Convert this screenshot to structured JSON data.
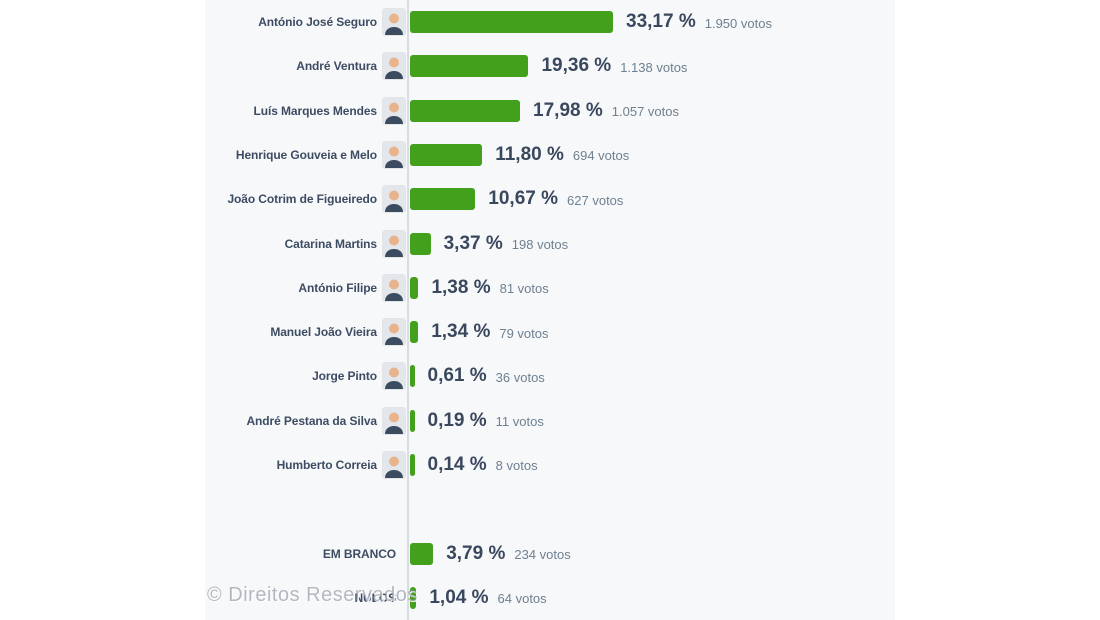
{
  "watermark": "© Direitos Reservados",
  "colors": {
    "bar_green": "#43a01c",
    "panel_background": "#f7f8fa",
    "axis_line": "#d9dde2",
    "name_text": "#3d4c63",
    "percent_text": "#3a485e",
    "votes_text": "#6f8090"
  },
  "chart_data": {
    "type": "bar",
    "orientation": "horizontal",
    "unit": "%",
    "title": "",
    "xlabel": "",
    "ylabel": "",
    "legend": false,
    "grid": false,
    "categories": [
      "António José Seguro",
      "André Ventura",
      "Luís Marques Mendes",
      "Henrique Gouveia e Melo",
      "João Cotrim de Figueiredo",
      "Catarina Martins",
      "António Filipe",
      "Manuel João Vieira",
      "Jorge Pinto",
      "André Pestana da Silva",
      "Humberto Correia",
      "EM BRANCO",
      "NULOS"
    ],
    "values": [
      33.17,
      19.36,
      17.98,
      11.8,
      10.67,
      3.37,
      1.38,
      1.34,
      0.61,
      0.19,
      0.14,
      3.79,
      1.04
    ],
    "votes": [
      1950,
      1138,
      1057,
      694,
      627,
      198,
      81,
      79,
      36,
      11,
      8,
      234,
      64
    ],
    "rows": [
      {
        "name": "António José Seguro",
        "value": 33.17,
        "percent_label": "33,17 %",
        "votes_label": "1.950 votos",
        "has_avatar": true,
        "spacer_before": false
      },
      {
        "name": "André Ventura",
        "value": 19.36,
        "percent_label": "19,36 %",
        "votes_label": "1.138 votos",
        "has_avatar": true,
        "spacer_before": false
      },
      {
        "name": "Luís Marques Mendes",
        "value": 17.98,
        "percent_label": "17,98 %",
        "votes_label": "1.057 votos",
        "has_avatar": true,
        "spacer_before": false
      },
      {
        "name": "Henrique Gouveia e Melo",
        "value": 11.8,
        "percent_label": "11,80 %",
        "votes_label": "694 votos",
        "has_avatar": true,
        "spacer_before": false
      },
      {
        "name": "João Cotrim de Figueiredo",
        "value": 10.67,
        "percent_label": "10,67 %",
        "votes_label": "627 votos",
        "has_avatar": true,
        "spacer_before": false
      },
      {
        "name": "Catarina Martins",
        "value": 3.37,
        "percent_label": "3,37 %",
        "votes_label": "198 votos",
        "has_avatar": true,
        "spacer_before": false
      },
      {
        "name": "António Filipe",
        "value": 1.38,
        "percent_label": "1,38 %",
        "votes_label": "81 votos",
        "has_avatar": true,
        "spacer_before": false
      },
      {
        "name": "Manuel João Vieira",
        "value": 1.34,
        "percent_label": "1,34 %",
        "votes_label": "79 votos",
        "has_avatar": true,
        "spacer_before": false
      },
      {
        "name": "Jorge Pinto",
        "value": 0.61,
        "percent_label": "0,61 %",
        "votes_label": "36 votos",
        "has_avatar": true,
        "spacer_before": false
      },
      {
        "name": "André Pestana da Silva",
        "value": 0.19,
        "percent_label": "0,19 %",
        "votes_label": "11 votos",
        "has_avatar": true,
        "spacer_before": false
      },
      {
        "name": "Humberto Correia",
        "value": 0.14,
        "percent_label": "0,14 %",
        "votes_label": "8 votos",
        "has_avatar": true,
        "spacer_before": false
      },
      {
        "name": "EM BRANCO",
        "value": 3.79,
        "percent_label": "3,79 %",
        "votes_label": "234 votos",
        "has_avatar": false,
        "spacer_before": true
      },
      {
        "name": "NULOS",
        "value": 1.04,
        "percent_label": "1,04 %",
        "votes_label": "64 votos",
        "has_avatar": false,
        "spacer_before": false
      }
    ]
  }
}
